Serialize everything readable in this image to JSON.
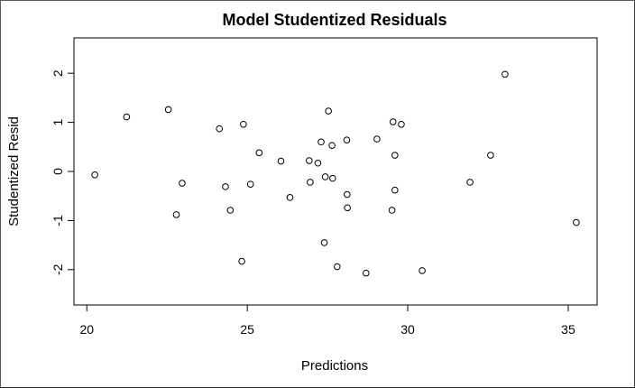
{
  "chart_data": {
    "type": "scatter",
    "title": "Model Studentized Residuals",
    "xlabel": "Predictions",
    "ylabel": "Studentized Resid",
    "xlim": [
      19.6,
      35.9
    ],
    "ylim": [
      -2.72,
      2.72
    ],
    "xticks": [
      20,
      25,
      30,
      35
    ],
    "yticks": [
      -2,
      -1,
      0,
      1,
      2
    ],
    "grid": false,
    "legend": "none",
    "marker": "open-circle",
    "colors": {
      "marker": "#000000",
      "axis": "#000000",
      "background": "#ffffff"
    },
    "series": [
      {
        "points": [
          [
            20.25,
            -0.07
          ],
          [
            21.24,
            1.11
          ],
          [
            22.54,
            1.26
          ],
          [
            22.79,
            -0.88
          ],
          [
            22.97,
            -0.24
          ],
          [
            24.13,
            0.87
          ],
          [
            24.32,
            -0.31
          ],
          [
            24.47,
            -0.79
          ],
          [
            24.83,
            -1.83
          ],
          [
            24.88,
            0.96
          ],
          [
            25.1,
            -0.26
          ],
          [
            25.37,
            0.38
          ],
          [
            26.05,
            0.21
          ],
          [
            26.33,
            -0.53
          ],
          [
            26.96,
            -0.22
          ],
          [
            26.93,
            0.22
          ],
          [
            27.2,
            0.17
          ],
          [
            27.3,
            0.6
          ],
          [
            27.4,
            -1.45
          ],
          [
            27.43,
            -0.11
          ],
          [
            27.53,
            1.23
          ],
          [
            27.64,
            0.53
          ],
          [
            27.66,
            -0.14
          ],
          [
            27.8,
            -1.94
          ],
          [
            28.1,
            0.64
          ],
          [
            28.11,
            -0.47
          ],
          [
            28.12,
            -0.74
          ],
          [
            28.7,
            -2.07
          ],
          [
            29.04,
            0.66
          ],
          [
            29.51,
            -0.79
          ],
          [
            29.54,
            1.01
          ],
          [
            29.6,
            0.33
          ],
          [
            29.6,
            -0.38
          ],
          [
            29.8,
            0.96
          ],
          [
            30.45,
            -2.02
          ],
          [
            31.94,
            -0.22
          ],
          [
            32.58,
            0.33
          ],
          [
            33.03,
            1.98
          ],
          [
            35.25,
            -1.04
          ]
        ]
      }
    ]
  }
}
